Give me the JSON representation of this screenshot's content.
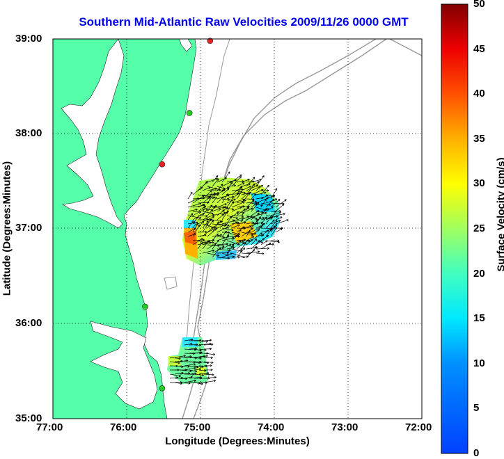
{
  "title": "Southern Mid-Atlantic Raw Velocities 2009/11/26 0000 GMT",
  "xlabel": "Longitude (Degrees:Minutes)",
  "ylabel": "Latitude (Degrees:Minutes)",
  "colorbar": {
    "label": "Surface Velocity (cm/s)",
    "ticks": [
      "0",
      "5",
      "10",
      "15",
      "20",
      "25",
      "30",
      "35",
      "40",
      "45",
      "50"
    ],
    "range": [
      0,
      50
    ],
    "colormap": "jet"
  },
  "x_ticks": [
    "77:00",
    "76:00",
    "75:00",
    "74:00",
    "73:00",
    "72:00"
  ],
  "y_ticks": [
    "39:00",
    "38:00",
    "37:00",
    "36:00",
    "35:00"
  ],
  "colors": {
    "land": "#55ffaa",
    "title": "#0000ee",
    "bathymetry": "#999999",
    "vector": "#000000",
    "station_active": "#22cc22",
    "station_inactive": "#ee2222"
  },
  "grid": "dotted",
  "stations": [
    {
      "lat": 38.98,
      "lon": -74.87,
      "status": "inactive"
    },
    {
      "lat": 38.22,
      "lon": -75.15,
      "status": "active"
    },
    {
      "lat": 37.68,
      "lon": -75.52,
      "status": "inactive"
    },
    {
      "lat": 36.18,
      "lon": -75.75,
      "status": "active"
    },
    {
      "lat": 35.32,
      "lon": -75.52,
      "status": "active"
    }
  ]
}
